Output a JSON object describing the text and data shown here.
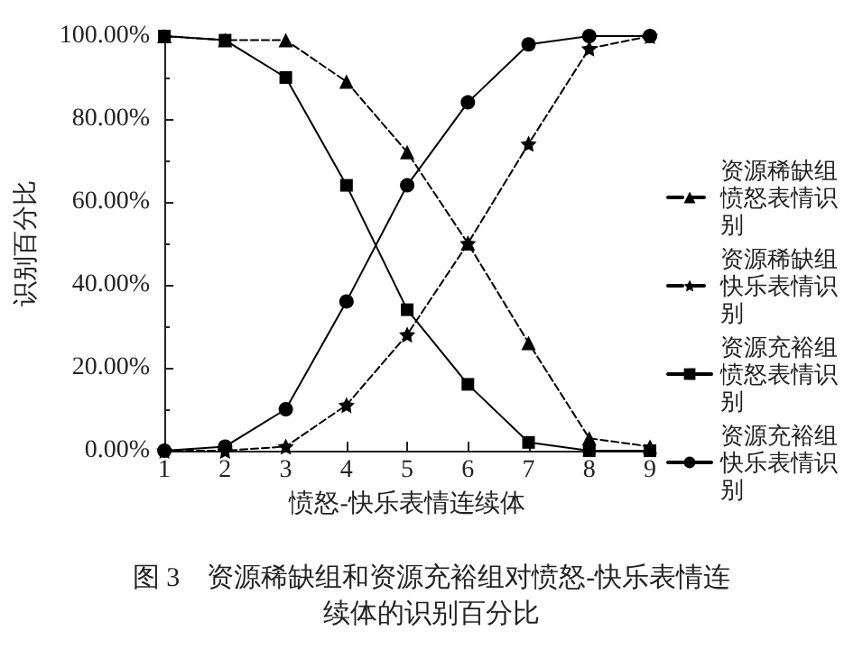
{
  "chart_data": {
    "type": "line",
    "title": "图 3　资源稀缺组和资源充裕组对愤怒-快乐表情连续体的识别百分比",
    "xlabel": "愤怒-快乐表情连续体",
    "ylabel": "识别百分比",
    "x": [
      1,
      2,
      3,
      4,
      5,
      6,
      7,
      8,
      9
    ],
    "series": [
      {
        "name": "资源稀缺组愤怒表情识别",
        "color": "#000000",
        "marker": "triangle",
        "line_style": "dashed",
        "values": [
          100,
          99,
          99,
          89,
          72,
          50,
          26,
          3,
          1
        ]
      },
      {
        "name": "资源稀缺组快乐表情识别",
        "color": "#000000",
        "marker": "star",
        "line_style": "dashed",
        "values": [
          0,
          0,
          1,
          11,
          28,
          50,
          74,
          97,
          100
        ]
      },
      {
        "name": "资源充裕组愤怒表情识别",
        "color": "#000000",
        "marker": "square",
        "line_style": "solid",
        "values": [
          100,
          99,
          90,
          64,
          34,
          16,
          2,
          0,
          0
        ]
      },
      {
        "name": "资源充裕组快乐表情识别",
        "color": "#000000",
        "marker": "circle",
        "line_style": "solid",
        "values": [
          0,
          1,
          10,
          36,
          64,
          84,
          98,
          100,
          100
        ]
      }
    ],
    "xlim": [
      1,
      9
    ],
    "xticks": [
      1,
      2,
      3,
      4,
      5,
      6,
      7,
      8,
      9
    ],
    "ylim": [
      0,
      100
    ],
    "yticks": [
      {
        "value": 0,
        "label": "0.00%"
      },
      {
        "value": 20,
        "label": "20.00%"
      },
      {
        "value": 40,
        "label": "40.00%"
      },
      {
        "value": 60,
        "label": "60.00%"
      },
      {
        "value": 80,
        "label": "80.00%"
      },
      {
        "value": 100,
        "label": "100.00%"
      }
    ],
    "grid": false,
    "legend": "right"
  }
}
